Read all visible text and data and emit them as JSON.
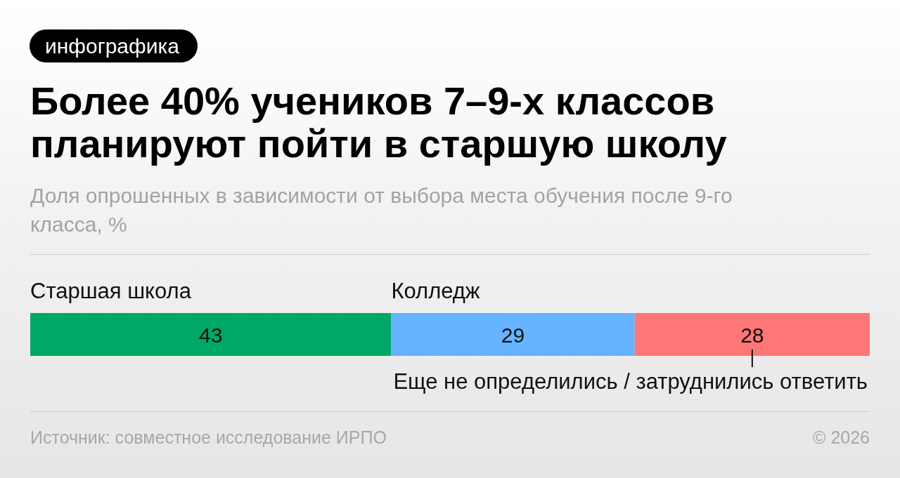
{
  "chart_data": {
    "type": "bar",
    "orientation": "horizontal",
    "stacked": true,
    "title": "Более 40% учеников 7–9-х классов планируют пойти в старшую школу",
    "subtitle": "Доля опрошенных в зависимости от выбора места обучения после 9-го класса, %",
    "categories": [
      null
    ],
    "series": [
      {
        "name": "Старшая школа",
        "color": "#00a867",
        "values": [
          43
        ]
      },
      {
        "name": "Колледж",
        "color": "#66b3ff",
        "values": [
          29
        ]
      },
      {
        "name": "Еще не определились / затруднились ответить",
        "color": "#ff7676",
        "values": [
          28
        ]
      }
    ],
    "data_labels": true,
    "annotations": [
      "инфографика",
      "Источник: совместное исследование ИРПО",
      "© 2026"
    ]
  }
}
